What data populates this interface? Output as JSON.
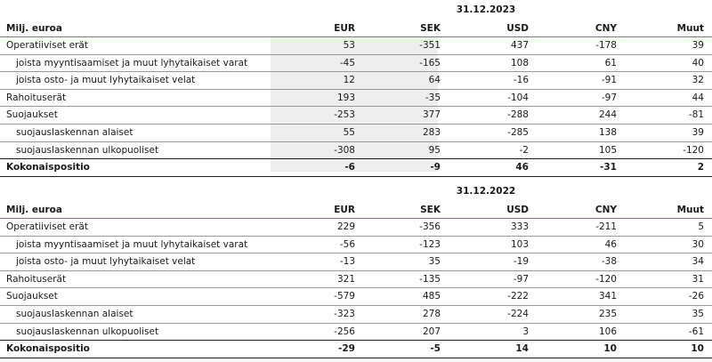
{
  "tables": [
    {
      "date": "31.12.2023",
      "header": {
        "label": "Milj. euroa",
        "columns": [
          "EUR",
          "SEK",
          "USD",
          "CNY",
          "Muut"
        ]
      },
      "rows": [
        {
          "label": "Operatiiviset erät",
          "values": [
            "53",
            "-351",
            "437",
            "-178",
            "39"
          ]
        },
        {
          "label": "joista myyntisaamiset ja muut lyhytaikaiset varat",
          "values": [
            "-45",
            "-165",
            "108",
            "61",
            "40"
          ]
        },
        {
          "label": "joista osto- ja muut lyhytaikaiset velat",
          "values": [
            "12",
            "64",
            "-16",
            "-91",
            "32"
          ]
        },
        {
          "label": "Rahoituserät",
          "values": [
            "193",
            "-35",
            "-104",
            "-97",
            "44"
          ]
        },
        {
          "label": "Suojaukset",
          "values": [
            "-253",
            "377",
            "-288",
            "244",
            "-81"
          ]
        },
        {
          "label": "suojauslaskennan alaiset",
          "values": [
            "55",
            "283",
            "-285",
            "138",
            "39"
          ]
        },
        {
          "label": "suojauslaskennan ulkopuoliset",
          "values": [
            "-308",
            "95",
            "-2",
            "105",
            "-120"
          ]
        },
        {
          "label": "Kokonaispositio",
          "values": [
            "-6",
            "-9",
            "46",
            "-31",
            "2"
          ]
        }
      ]
    },
    {
      "date": "31.12.2022",
      "header": {
        "label": "Milj. euroa",
        "columns": [
          "EUR",
          "SEK",
          "USD",
          "CNY",
          "Muut"
        ]
      },
      "rows": [
        {
          "label": "Operatiiviset erät",
          "values": [
            "229",
            "-356",
            "333",
            "-211",
            "5"
          ]
        },
        {
          "label": "joista myyntisaamiset ja muut lyhytaikaiset varat",
          "values": [
            "-56",
            "-123",
            "103",
            "46",
            "30"
          ]
        },
        {
          "label": "joista osto- ja muut lyhytaikaiset velat",
          "values": [
            "-13",
            "35",
            "-19",
            "-38",
            "34"
          ]
        },
        {
          "label": "Rahoituserät",
          "values": [
            "321",
            "-135",
            "-97",
            "-120",
            "31"
          ]
        },
        {
          "label": "Suojaukset",
          "values": [
            "-579",
            "485",
            "-222",
            "341",
            "-26"
          ]
        },
        {
          "label": "suojauslaskennan alaiset",
          "values": [
            "-323",
            "278",
            "-224",
            "235",
            "35"
          ]
        },
        {
          "label": "suojauslaskennan ulkopuoliset",
          "values": [
            "-256",
            "207",
            "3",
            "106",
            "-61"
          ]
        },
        {
          "label": "Kokonaispositio",
          "values": [
            "-29",
            "-5",
            "14",
            "10",
            "10"
          ]
        }
      ]
    }
  ]
}
